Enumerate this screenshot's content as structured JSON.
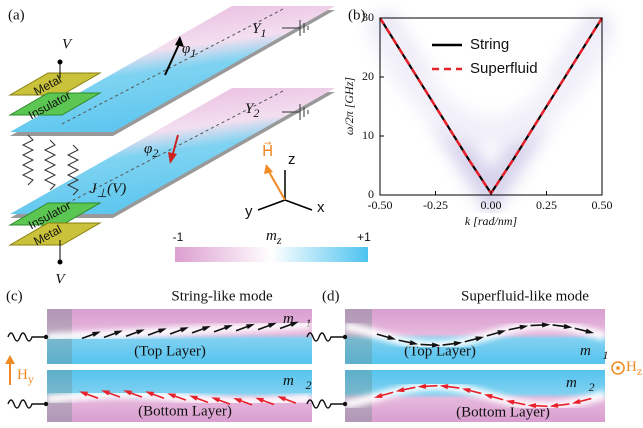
{
  "panel_a": {
    "label": "(a)",
    "v_top": "V",
    "v_bottom": "V",
    "metal_top": "Metal",
    "insulator_top": "Insulator",
    "insulator_bottom": "Insulator",
    "metal_bottom": "Metal",
    "y1": {
      "base": "Y",
      "sub": "1"
    },
    "y2": {
      "base": "Y",
      "sub": "2"
    },
    "phi1": {
      "base": "φ",
      "sub": "1"
    },
    "phi2": {
      "base": "φ",
      "sub": "2"
    },
    "coupling": {
      "base": "J",
      "sub": "⊥",
      "tail": "(V)"
    },
    "field": "H⃗",
    "axis_z": "z",
    "axis_x": "x",
    "axis_y": "y",
    "colorbar": {
      "label": {
        "base": "m",
        "sub": "z"
      },
      "min": "-1",
      "max": "+1"
    }
  },
  "chart_data": {
    "type": "line",
    "label": "(b)",
    "xlabel": "k [rad/nm]",
    "ylabel": "ω/2π [GHz]",
    "x": [
      -0.5,
      -0.4,
      -0.3,
      -0.2,
      -0.1,
      0,
      0.1,
      0.2,
      0.3,
      0.4,
      0.5
    ],
    "series": [
      {
        "name": "String",
        "color": "#000000",
        "values": [
          30,
          24,
          18,
          12,
          6,
          0.3,
          6,
          12,
          18,
          24,
          30
        ]
      },
      {
        "name": "Superfluid",
        "color": "#e8202a",
        "values": [
          30,
          24,
          18,
          12,
          6,
          0.3,
          6,
          12,
          18,
          24,
          30
        ]
      }
    ],
    "xlim": [
      -0.5,
      0.5
    ],
    "ylim": [
      0,
      30
    ],
    "xticks": [
      {
        "value": -0.5,
        "label": "-0.50"
      },
      {
        "value": -0.25,
        "label": "-0.25"
      },
      {
        "value": 0,
        "label": "0.00"
      },
      {
        "value": 0.25,
        "label": "0.25"
      },
      {
        "value": 0.5,
        "label": "0.50"
      }
    ],
    "yticks": [
      0,
      10,
      20,
      30
    ],
    "legend": "upper center"
  },
  "panel_c": {
    "label": "(c)",
    "title": "String-like mode",
    "top": "(Top Layer)",
    "bottom": "(Bottom Layer)",
    "m1": {
      "base": "m⃗",
      "sub": "1"
    },
    "m2": {
      "base": "m⃗",
      "sub": "2"
    },
    "field": {
      "base": "H",
      "sub": "y"
    }
  },
  "panel_d": {
    "label": "(d)",
    "title": "Superfluid-like mode",
    "top": "(Top Layer)",
    "bottom": "(Bottom Layer)",
    "m1": {
      "base": "m⃗",
      "sub": "1"
    },
    "m2": {
      "base": "m⃗",
      "sub": "2"
    },
    "field": {
      "base": "H",
      "sub": "z"
    }
  }
}
